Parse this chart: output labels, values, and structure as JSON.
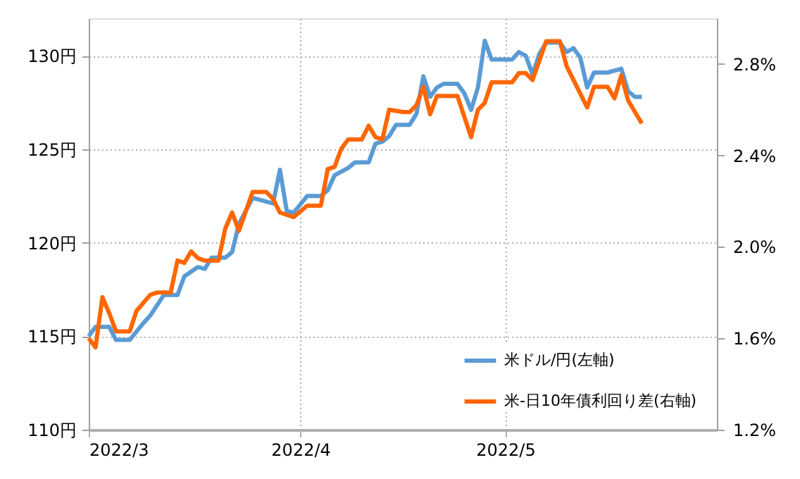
{
  "chart_data": {
    "type": "line",
    "xlim": [
      "2022-03-01",
      "2022-06-01"
    ],
    "xticks": [
      {
        "value": "2022-03-01",
        "label": "2022/3"
      },
      {
        "value": "2022-04-01",
        "label": "2022/4"
      },
      {
        "value": "2022-05-01",
        "label": "2022/5"
      }
    ],
    "ylim": [
      110,
      132
    ],
    "yticks": [
      {
        "value": 110,
        "label": "110円"
      },
      {
        "value": 115,
        "label": "115円"
      },
      {
        "value": 120,
        "label": "120円"
      },
      {
        "value": 125,
        "label": "125円"
      },
      {
        "value": 130,
        "label": "130円"
      }
    ],
    "y2lim": [
      1.2,
      3.0
    ],
    "y2ticks": [
      {
        "value": 1.2,
        "label": "1.2%"
      },
      {
        "value": 1.6,
        "label": "1.6%"
      },
      {
        "value": 2.0,
        "label": "2.0%"
      },
      {
        "value": 2.4,
        "label": "2.4%"
      },
      {
        "value": 2.8,
        "label": "2.8%"
      }
    ],
    "grid": true,
    "legend": "bottom right",
    "marker": "none",
    "line_style": "solid",
    "series": [
      {
        "name": "米ドル/円(左軸)",
        "color": "#5b9bd5",
        "x": [
          "2022-03-01",
          "2022-03-02",
          "2022-03-04",
          "2022-03-05",
          "2022-03-07",
          "2022-03-09",
          "2022-03-10",
          "2022-03-12",
          "2022-03-14",
          "2022-03-15",
          "2022-03-17",
          "2022-03-18",
          "2022-03-19",
          "2022-03-21",
          "2022-03-22",
          "2022-03-23",
          "2022-03-25",
          "2022-03-28",
          "2022-03-29",
          "2022-03-30",
          "2022-03-31",
          "2022-04-02",
          "2022-04-04",
          "2022-04-05",
          "2022-04-06",
          "2022-04-08",
          "2022-04-09",
          "2022-04-11",
          "2022-04-12",
          "2022-04-13",
          "2022-04-14",
          "2022-04-15",
          "2022-04-17",
          "2022-04-18",
          "2022-04-19",
          "2022-04-20",
          "2022-04-21",
          "2022-04-22",
          "2022-04-24",
          "2022-04-25",
          "2022-04-26",
          "2022-04-27",
          "2022-04-28",
          "2022-04-29",
          "2022-05-02",
          "2022-05-03",
          "2022-05-04",
          "2022-05-05",
          "2022-05-06",
          "2022-05-07",
          "2022-05-09",
          "2022-05-10",
          "2022-05-11",
          "2022-05-12",
          "2022-05-13",
          "2022-05-14",
          "2022-05-16",
          "2022-05-18",
          "2022-05-19",
          "2022-05-20",
          "2022-05-21"
        ],
        "values": [
          115.0,
          115.5,
          115.5,
          114.8,
          114.8,
          115.7,
          116.1,
          117.2,
          117.2,
          118.2,
          118.7,
          118.6,
          119.2,
          119.2,
          119.5,
          121.0,
          122.4,
          122.1,
          123.9,
          121.7,
          121.6,
          122.5,
          122.5,
          122.8,
          123.6,
          124.0,
          124.3,
          124.3,
          125.3,
          125.4,
          125.7,
          126.3,
          126.3,
          126.9,
          128.9,
          127.8,
          128.3,
          128.5,
          128.5,
          128.0,
          127.1,
          128.3,
          130.8,
          129.8,
          129.8,
          130.2,
          130.0,
          129.0,
          130.1,
          130.7,
          130.7,
          130.2,
          130.4,
          129.9,
          128.3,
          129.1,
          129.1,
          129.3,
          128.1,
          127.8,
          127.8
        ]
      },
      {
        "name": "米-日10年債利回り差(右軸)",
        "color": "#ff6600",
        "axis": "y2",
        "x": [
          "2022-03-01",
          "2022-03-02",
          "2022-03-03",
          "2022-03-04",
          "2022-03-05",
          "2022-03-07",
          "2022-03-08",
          "2022-03-10",
          "2022-03-11",
          "2022-03-13",
          "2022-03-14",
          "2022-03-15",
          "2022-03-16",
          "2022-03-17",
          "2022-03-18",
          "2022-03-20",
          "2022-03-21",
          "2022-03-22",
          "2022-03-23",
          "2022-03-25",
          "2022-03-27",
          "2022-03-28",
          "2022-03-29",
          "2022-03-31",
          "2022-04-02",
          "2022-04-04",
          "2022-04-05",
          "2022-04-06",
          "2022-04-07",
          "2022-04-08",
          "2022-04-10",
          "2022-04-11",
          "2022-04-12",
          "2022-04-13",
          "2022-04-14",
          "2022-04-16",
          "2022-04-17",
          "2022-04-18",
          "2022-04-19",
          "2022-04-20",
          "2022-04-21",
          "2022-04-24",
          "2022-04-26",
          "2022-04-27",
          "2022-04-28",
          "2022-04-29",
          "2022-05-02",
          "2022-05-03",
          "2022-05-04",
          "2022-05-05",
          "2022-05-07",
          "2022-05-09",
          "2022-05-10",
          "2022-05-11",
          "2022-05-13",
          "2022-05-14",
          "2022-05-16",
          "2022-05-17",
          "2022-05-18",
          "2022-05-19",
          "2022-05-21"
        ],
        "values": [
          1.6,
          1.56,
          1.78,
          1.71,
          1.63,
          1.63,
          1.72,
          1.79,
          1.8,
          1.8,
          1.94,
          1.93,
          1.98,
          1.95,
          1.94,
          1.94,
          2.08,
          2.15,
          2.07,
          2.24,
          2.24,
          2.21,
          2.15,
          2.13,
          2.18,
          2.18,
          2.34,
          2.35,
          2.43,
          2.47,
          2.47,
          2.53,
          2.48,
          2.47,
          2.6,
          2.59,
          2.59,
          2.62,
          2.7,
          2.58,
          2.66,
          2.66,
          2.48,
          2.6,
          2.63,
          2.72,
          2.72,
          2.76,
          2.76,
          2.73,
          2.9,
          2.9,
          2.79,
          2.73,
          2.61,
          2.7,
          2.7,
          2.65,
          2.75,
          2.64,
          2.54
        ]
      }
    ]
  }
}
